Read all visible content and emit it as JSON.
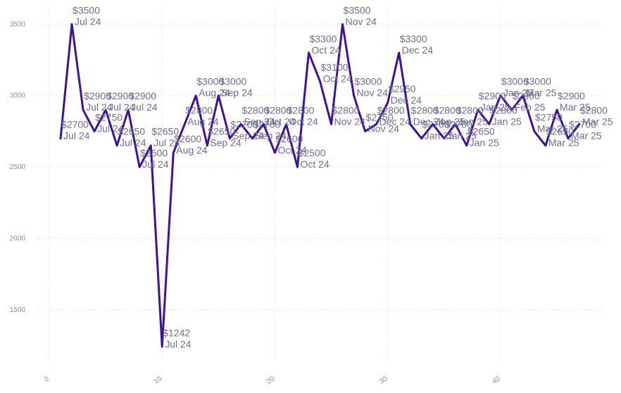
{
  "chart_data": {
    "type": "line",
    "title": "",
    "xlabel": "",
    "ylabel": "",
    "xlim": [
      -1,
      49
    ],
    "ylim": [
      1130,
      3620
    ],
    "xticks": [
      0,
      10,
      20,
      30,
      40
    ],
    "yticks": [
      1500,
      2000,
      2500,
      3000,
      3500
    ],
    "grid": true,
    "legend": "none",
    "line_color": "#3f0fa0",
    "series": [
      {
        "x": [
          1,
          2,
          3,
          4,
          5,
          6,
          7,
          8,
          9,
          10,
          11,
          12,
          13,
          14,
          15,
          16,
          17,
          18,
          19,
          20,
          21,
          22,
          23,
          24,
          25,
          26,
          27,
          28,
          29,
          30,
          31,
          32,
          33,
          34,
          35,
          36,
          37,
          38,
          39,
          40,
          41,
          42,
          43,
          44,
          45,
          46,
          47
        ],
        "values": [
          2700,
          3500,
          2900,
          2750,
          2900,
          2650,
          2900,
          2500,
          2650,
          1242,
          2600,
          2800,
          3000,
          2650,
          3000,
          2700,
          2800,
          2700,
          2800,
          2600,
          2800,
          2500,
          3300,
          3100,
          2800,
          3500,
          3000,
          2750,
          2800,
          2950,
          3300,
          2800,
          2700,
          2800,
          2700,
          2800,
          2650,
          2900,
          2800,
          3000,
          2900,
          3000,
          2750,
          2650,
          2900,
          2700,
          2800
        ],
        "labels": [
          "Jul 24",
          "Jul 24",
          "Jul 24",
          "Jul 24",
          "Jul 24",
          "Jul 24",
          "Jul 24",
          "Jul 24",
          "Jul 24",
          "Jul 24",
          "Aug 24",
          "Aug 24",
          "Aug 24",
          "Sep 24",
          "Sep 24",
          "Sep 24",
          "Sep 24",
          "Sep 24",
          "Oct 24",
          "Oct 24",
          "Oct 24",
          "Oct 24",
          "Oct 24",
          "Oct 24",
          "Nov 24",
          "Nov 24",
          "Nov 24",
          "Nov 24",
          "Dec 24",
          "Dec 24",
          "Dec 24",
          "Dec 24",
          "Jan 25",
          "Jan 25",
          "Jan 25",
          "Jan 25",
          "Jan 25",
          "Jan 25",
          "Jan 25",
          "Jan 25",
          "Feb 25",
          "Mar 25",
          "Mar 25",
          "Mar 25",
          "Mar 25",
          "Mar 25",
          "Mar 25"
        ],
        "value_labels": [
          "$2700",
          "$3500",
          "$2900",
          "$2750",
          "$2900",
          "$2650",
          "$2900",
          "$2500",
          "$2650",
          "$1242",
          "$2600",
          "$2800",
          "$3000",
          "$2650",
          "$3000",
          "$2700",
          "$2800",
          "$2700",
          "$2800",
          "$2600",
          "$2800",
          "$2500",
          "$3300",
          "$3100",
          "$2800",
          "$3500",
          "$3000",
          "$2750",
          "$2800",
          "$2950",
          "$3300",
          "$2800",
          "$2700",
          "$2800",
          "$2700",
          "$2800",
          "$2650",
          "$2900",
          "$2800",
          "$3000",
          "$2900",
          "$3000",
          "$2750",
          "$2650",
          "$2900",
          "$2700",
          "$2800"
        ]
      }
    ]
  }
}
